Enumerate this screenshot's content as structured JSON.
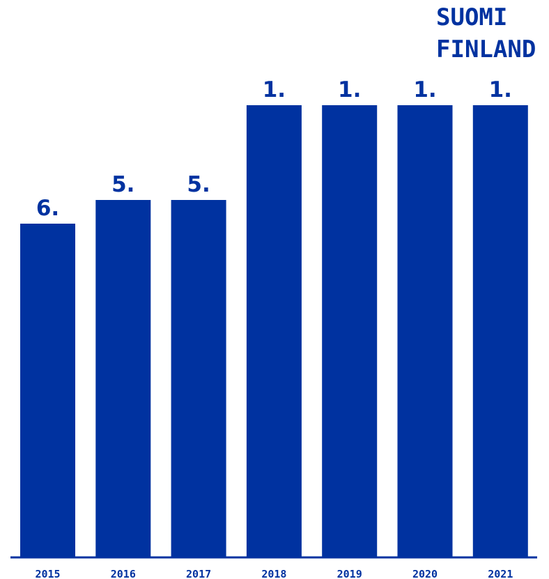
{
  "brand": {
    "line1": "SUOMI",
    "line2": "FINLAND"
  },
  "colors": {
    "bar": "#0032a0",
    "axis": "#0032a0",
    "text": "#0032a0"
  },
  "chart_data": {
    "type": "bar",
    "title": "",
    "xlabel": "",
    "ylabel": "",
    "categories": [
      "2015",
      "2016",
      "2017",
      "2018",
      "2019",
      "2020",
      "2021"
    ],
    "values": [
      6,
      5,
      5,
      1,
      1,
      1,
      1
    ],
    "data_labels": [
      "6.",
      "5.",
      "5.",
      "1.",
      "1.",
      "1.",
      "1."
    ],
    "inverted": true,
    "grid": false,
    "legend": "none"
  }
}
